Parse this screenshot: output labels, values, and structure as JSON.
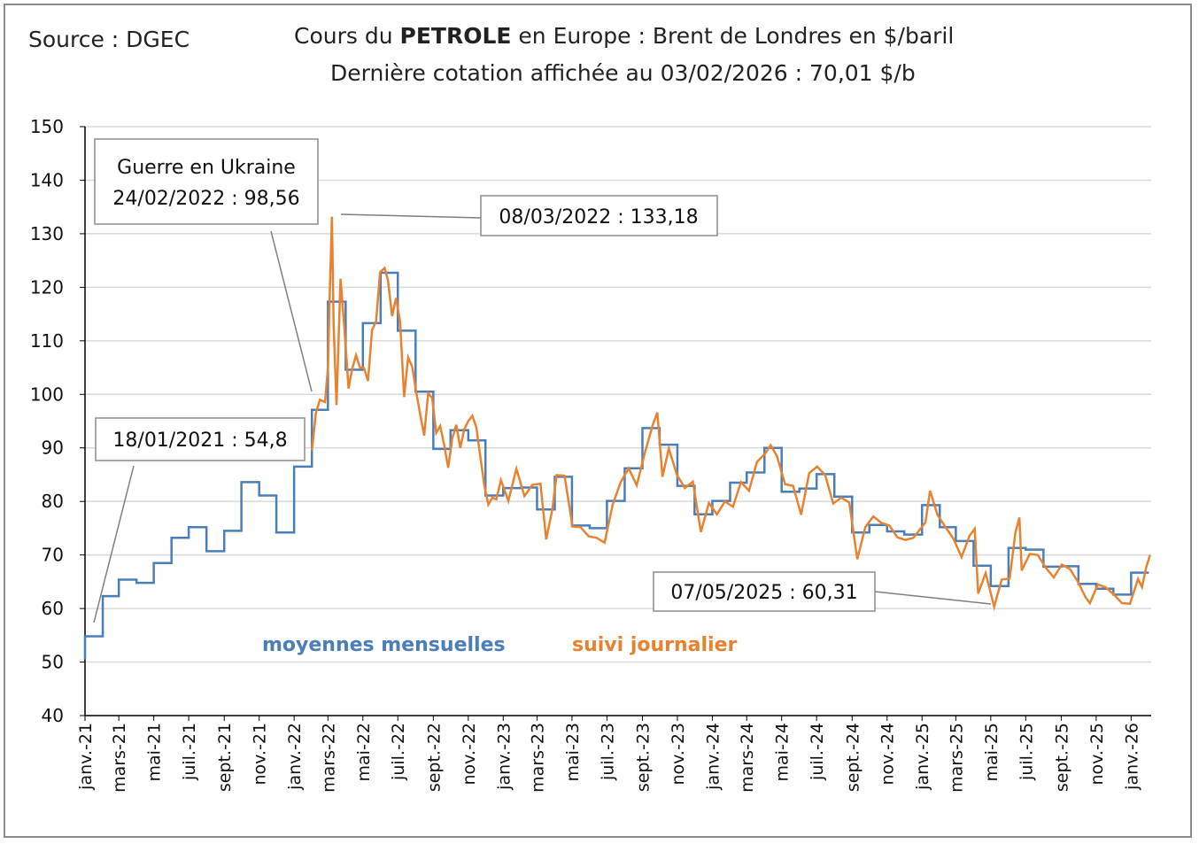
{
  "source": "Source : DGEC",
  "title_pre": "Cours du ",
  "title_bold": "PETROLE",
  "title_post": " en Europe : Brent de Londres en $/baril",
  "subtitle": "Dernière cotation affichée au 03/02/2026 : 70,01 $/b",
  "colors": {
    "monthly": "#4a7ebb",
    "daily": "#e8822e",
    "grid": "#d9d9d9",
    "axis": "#000000"
  },
  "chart_data": {
    "type": "line",
    "ylim": [
      40,
      150
    ],
    "yticks": [
      40,
      50,
      60,
      70,
      80,
      90,
      100,
      110,
      120,
      130,
      140,
      150
    ],
    "grid": true,
    "xticks": [
      "janv.-21",
      "mars-21",
      "mai-21",
      "juil.-21",
      "sept.-21",
      "nov.-21",
      "janv.-22",
      "mars-22",
      "mai-22",
      "juil.-22",
      "sept.-22",
      "nov.-22",
      "janv.-23",
      "mars-23",
      "mai-23",
      "juil.-23",
      "sept.-23",
      "nov.-23",
      "janv.-24",
      "mars-24",
      "mai-24",
      "juil.-24",
      "sept.-24",
      "nov.-24",
      "janv.-25",
      "mars-25",
      "mai-25",
      "juil.-25",
      "sept.-25",
      "nov.-25",
      "janv.-26"
    ],
    "series": [
      {
        "name": "moyennes mensuelles",
        "type": "step",
        "x": [
          "2021-01",
          "2021-02",
          "2021-03",
          "2021-04",
          "2021-05",
          "2021-06",
          "2021-07",
          "2021-08",
          "2021-09",
          "2021-10",
          "2021-11",
          "2021-12",
          "2022-01",
          "2022-02",
          "2022-03",
          "2022-04",
          "2022-05",
          "2022-06",
          "2022-07",
          "2022-08",
          "2022-09",
          "2022-10",
          "2022-11",
          "2022-12",
          "2023-01",
          "2023-02",
          "2023-03",
          "2023-04",
          "2023-05",
          "2023-06",
          "2023-07",
          "2023-08",
          "2023-09",
          "2023-10",
          "2023-11",
          "2023-12",
          "2024-01",
          "2024-02",
          "2024-03",
          "2024-04",
          "2024-05",
          "2024-06",
          "2024-07",
          "2024-08",
          "2024-09",
          "2024-10",
          "2024-11",
          "2024-12",
          "2025-01",
          "2025-02",
          "2025-03",
          "2025-04",
          "2025-05",
          "2025-06",
          "2025-07",
          "2025-08",
          "2025-09",
          "2025-10",
          "2025-11",
          "2025-12",
          "2026-01"
        ],
        "values": [
          54.8,
          62.3,
          65.4,
          64.8,
          68.5,
          73.2,
          75.2,
          70.7,
          74.5,
          83.6,
          81.1,
          74.2,
          86.5,
          97.1,
          117.3,
          104.6,
          113.3,
          122.7,
          111.9,
          100.5,
          89.8,
          93.3,
          91.4,
          81.1,
          82.5,
          82.6,
          78.5,
          84.6,
          75.5,
          75.0,
          80.1,
          86.2,
          93.7,
          90.6,
          82.9,
          77.6,
          80.1,
          83.5,
          85.4,
          90.0,
          81.8,
          82.4,
          85.1,
          80.9,
          74.2,
          75.6,
          74.4,
          73.8,
          79.3,
          75.2,
          72.6,
          68.0,
          64.2,
          71.3,
          71.0,
          67.8,
          67.9,
          64.6,
          63.7,
          62.6,
          66.7
        ]
      },
      {
        "name": "suivi journalier",
        "type": "line",
        "x": [
          "2022-02-01",
          "2022-02-08",
          "2022-02-15",
          "2022-02-24",
          "2022-03-01",
          "2022-03-04",
          "2022-03-08",
          "2022-03-11",
          "2022-03-16",
          "2022-03-23",
          "2022-03-30",
          "2022-04-06",
          "2022-04-12",
          "2022-04-19",
          "2022-04-26",
          "2022-05-03",
          "2022-05-10",
          "2022-05-17",
          "2022-05-24",
          "2022-05-31",
          "2022-06-08",
          "2022-06-14",
          "2022-06-21",
          "2022-06-28",
          "2022-07-05",
          "2022-07-12",
          "2022-07-19",
          "2022-07-26",
          "2022-08-02",
          "2022-08-09",
          "2022-08-16",
          "2022-08-23",
          "2022-08-30",
          "2022-09-06",
          "2022-09-13",
          "2022-09-20",
          "2022-09-27",
          "2022-10-04",
          "2022-10-11",
          "2022-10-18",
          "2022-10-25",
          "2022-11-01",
          "2022-11-08",
          "2022-11-15",
          "2022-11-22",
          "2022-11-29",
          "2022-12-06",
          "2022-12-13",
          "2022-12-20",
          "2022-12-28",
          "2023-01-10",
          "2023-01-24",
          "2023-02-07",
          "2023-02-21",
          "2023-03-07",
          "2023-03-17",
          "2023-03-28",
          "2023-04-04",
          "2023-04-18",
          "2023-05-02",
          "2023-05-16",
          "2023-05-30",
          "2023-06-13",
          "2023-06-27",
          "2023-07-11",
          "2023-07-25",
          "2023-08-08",
          "2023-08-22",
          "2023-09-05",
          "2023-09-19",
          "2023-09-27",
          "2023-10-06",
          "2023-10-17",
          "2023-10-31",
          "2023-11-14",
          "2023-11-28",
          "2023-12-12",
          "2023-12-26",
          "2024-01-09",
          "2024-01-23",
          "2024-02-06",
          "2024-02-20",
          "2024-03-05",
          "2024-03-19",
          "2024-04-02",
          "2024-04-12",
          "2024-04-23",
          "2024-05-07",
          "2024-05-21",
          "2024-06-04",
          "2024-06-18",
          "2024-07-02",
          "2024-07-16",
          "2024-07-30",
          "2024-08-13",
          "2024-08-27",
          "2024-09-10",
          "2024-09-24",
          "2024-10-08",
          "2024-10-22",
          "2024-11-05",
          "2024-11-19",
          "2024-12-03",
          "2024-12-17",
          "2025-01-07",
          "2025-01-15",
          "2025-01-28",
          "2025-02-11",
          "2025-02-25",
          "2025-03-11",
          "2025-03-25",
          "2025-04-03",
          "2025-04-09",
          "2025-04-22",
          "2025-05-07",
          "2025-05-20",
          "2025-06-03",
          "2025-06-13",
          "2025-06-20",
          "2025-06-24",
          "2025-07-08",
          "2025-07-22",
          "2025-08-05",
          "2025-08-19",
          "2025-09-02",
          "2025-09-16",
          "2025-09-30",
          "2025-10-14",
          "2025-10-21",
          "2025-11-04",
          "2025-11-18",
          "2025-12-02",
          "2025-12-16",
          "2025-12-30",
          "2026-01-13",
          "2026-01-20",
          "2026-01-27",
          "2026-02-03"
        ],
        "values": [
          89.5,
          96.5,
          99.0,
          98.56,
          105.0,
          118.1,
          133.18,
          112.7,
          98.0,
          121.6,
          112.0,
          101.1,
          104.6,
          107.3,
          105.0,
          104.9,
          102.5,
          112.0,
          113.6,
          122.8,
          123.6,
          121.2,
          114.6,
          118.0,
          113.5,
          99.5,
          106.9,
          105.2,
          100.5,
          96.3,
          92.3,
          100.2,
          99.3,
          92.8,
          94.1,
          90.5,
          86.3,
          91.8,
          94.3,
          90.0,
          93.5,
          95.0,
          96.0,
          93.9,
          88.4,
          83.0,
          79.4,
          80.7,
          80.4,
          84.0,
          80.1,
          86.1,
          81.0,
          83.1,
          83.3,
          72.9,
          78.7,
          84.9,
          84.8,
          75.3,
          75.2,
          73.5,
          73.2,
          72.3,
          79.4,
          83.6,
          86.2,
          83.0,
          89.0,
          94.3,
          96.6,
          84.6,
          89.9,
          85.0,
          82.5,
          83.7,
          74.3,
          79.7,
          77.6,
          80.0,
          79.0,
          83.6,
          82.0,
          87.4,
          88.9,
          90.5,
          88.4,
          83.2,
          82.9,
          77.5,
          85.3,
          86.5,
          84.9,
          79.6,
          80.7,
          79.8,
          69.2,
          75.2,
          77.2,
          76.0,
          75.5,
          73.3,
          72.8,
          73.2,
          76.1,
          82.0,
          77.5,
          75.2,
          73.0,
          69.6,
          73.6,
          74.9,
          62.8,
          66.6,
          60.31,
          65.4,
          65.6,
          74.2,
          77.0,
          67.1,
          70.2,
          70.0,
          67.6,
          65.8,
          68.2,
          67.4,
          65.0,
          62.0,
          61.0,
          64.5,
          63.9,
          62.6,
          61.0,
          60.9,
          65.5,
          64.0,
          67.6,
          70.01
        ]
      }
    ],
    "annotations": [
      {
        "text": "18/01/2021 : 54,8",
        "x": "2021-01-18",
        "y": 54.8
      },
      {
        "text_line1": "Guerre en Ukraine",
        "text_line2": "24/02/2022 : 98,56",
        "x": "2022-02-24",
        "y": 98.56
      },
      {
        "text": "08/03/2022 : 133,18",
        "x": "2022-03-08",
        "y": 133.18
      },
      {
        "text": "07/05/2025 : 60,31",
        "x": "2025-05-07",
        "y": 60.31
      }
    ]
  }
}
